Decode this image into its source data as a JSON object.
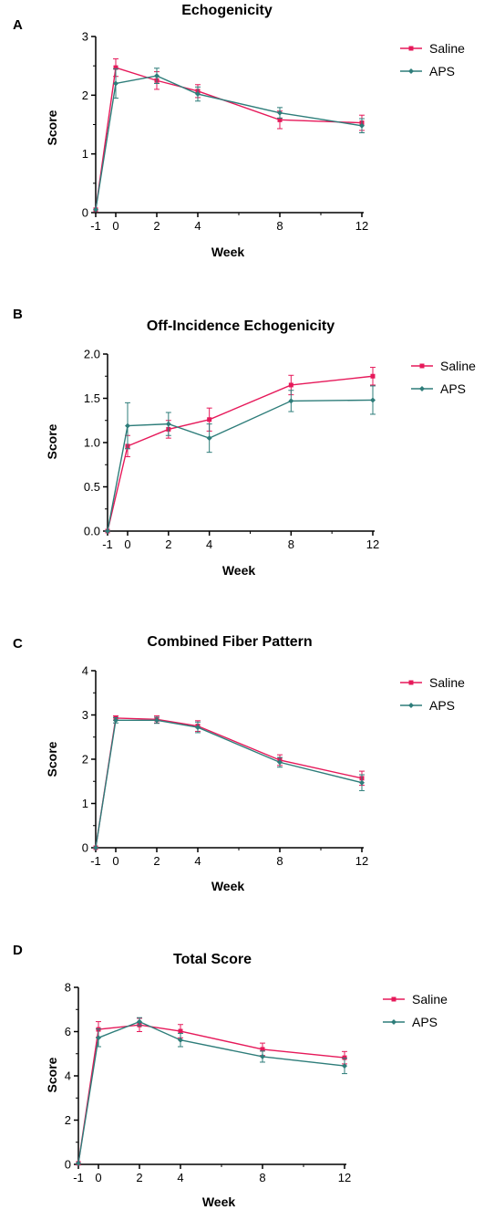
{
  "chart_data": [
    {
      "type": "line",
      "panel_label": "A",
      "title": "Echogenicity",
      "xlabel": "Week",
      "ylabel": "Score",
      "x": [
        -1,
        0,
        2,
        4,
        8,
        12
      ],
      "x_tick_labels": [
        "-1",
        "0",
        "2",
        "4",
        "8",
        "12"
      ],
      "ylim": [
        0,
        3
      ],
      "y_ticks": [
        0,
        1,
        2,
        3
      ],
      "y_tick_labels": [
        "0",
        "1",
        "2",
        "3"
      ],
      "grid": false,
      "legend_position": "top-right",
      "series": [
        {
          "name": "Saline",
          "color": "#e6195a",
          "marker": "square",
          "values": [
            0.05,
            2.47,
            2.25,
            2.07,
            1.58,
            1.53
          ],
          "errors": [
            0,
            0.15,
            0.15,
            0.11,
            0.15,
            0.13
          ]
        },
        {
          "name": "APS",
          "color": "#2e7d7a",
          "marker": "diamond",
          "values": [
            0.05,
            2.2,
            2.33,
            2.02,
            1.7,
            1.48
          ],
          "errors": [
            0,
            0.25,
            0.13,
            0.12,
            0.09,
            0.12
          ]
        }
      ]
    },
    {
      "type": "line",
      "panel_label": "B",
      "title": "Off-Incidence Echogenicity",
      "xlabel": "Week",
      "ylabel": "Score",
      "x": [
        -1,
        0,
        2,
        4,
        8,
        12
      ],
      "x_tick_labels": [
        "-1",
        "0",
        "2",
        "4",
        "8",
        "12"
      ],
      "ylim": [
        0,
        2
      ],
      "y_ticks": [
        0,
        0.5,
        1,
        1.5,
        2
      ],
      "y_tick_labels": [
        "0.0",
        "0.5",
        "1.0",
        "1.5",
        "2.0"
      ],
      "grid": false,
      "legend_position": "top-right",
      "series": [
        {
          "name": "Saline",
          "color": "#e6195a",
          "marker": "square",
          "values": [
            0,
            0.96,
            1.15,
            1.26,
            1.65,
            1.75
          ],
          "errors": [
            0,
            0.12,
            0.1,
            0.13,
            0.11,
            0.1
          ]
        },
        {
          "name": "APS",
          "color": "#2e7d7a",
          "marker": "diamond",
          "values": [
            0,
            1.19,
            1.21,
            1.05,
            1.47,
            1.48
          ],
          "errors": [
            0,
            0.26,
            0.13,
            0.16,
            0.12,
            0.16
          ]
        }
      ]
    },
    {
      "type": "line",
      "panel_label": "C",
      "title": "Combined Fiber Pattern",
      "xlabel": "Week",
      "ylabel": "Score",
      "x": [
        -1,
        0,
        2,
        4,
        8,
        12
      ],
      "x_tick_labels": [
        "-1",
        "0",
        "2",
        "4",
        "8",
        "12"
      ],
      "ylim": [
        0,
        4
      ],
      "y_ticks": [
        0,
        1,
        2,
        3,
        4
      ],
      "y_tick_labels": [
        "0",
        "1",
        "2",
        "3",
        "4"
      ],
      "grid": false,
      "legend_position": "top-right",
      "series": [
        {
          "name": "Saline",
          "color": "#e6195a",
          "marker": "square",
          "values": [
            0,
            2.93,
            2.9,
            2.75,
            1.98,
            1.57
          ],
          "errors": [
            0,
            0.05,
            0.08,
            0.12,
            0.12,
            0.16
          ]
        },
        {
          "name": "APS",
          "color": "#2e7d7a",
          "marker": "diamond",
          "values": [
            0,
            2.88,
            2.88,
            2.72,
            1.93,
            1.47
          ],
          "errors": [
            0,
            0.06,
            0.07,
            0.12,
            0.11,
            0.18
          ]
        }
      ]
    },
    {
      "type": "line",
      "panel_label": "D",
      "title": "Total Score",
      "xlabel": "Week",
      "ylabel": "Score",
      "x": [
        -1,
        0,
        2,
        4,
        8,
        12
      ],
      "x_tick_labels": [
        "-1",
        "0",
        "2",
        "4",
        "8",
        "12"
      ],
      "ylim": [
        0,
        8
      ],
      "y_ticks": [
        0,
        2,
        4,
        6,
        8
      ],
      "y_tick_labels": [
        "0",
        "2",
        "4",
        "6",
        "8"
      ],
      "grid": false,
      "legend_position": "top-right",
      "series": [
        {
          "name": "Saline",
          "color": "#e6195a",
          "marker": "square",
          "values": [
            0.05,
            6.1,
            6.3,
            6.02,
            5.2,
            4.82
          ],
          "errors": [
            0,
            0.35,
            0.3,
            0.3,
            0.28,
            0.28
          ]
        },
        {
          "name": "APS",
          "color": "#2e7d7a",
          "marker": "diamond",
          "values": [
            0.05,
            5.72,
            6.45,
            5.62,
            4.87,
            4.45
          ],
          "errors": [
            0,
            0.4,
            0.18,
            0.3,
            0.25,
            0.35
          ]
        }
      ]
    }
  ]
}
